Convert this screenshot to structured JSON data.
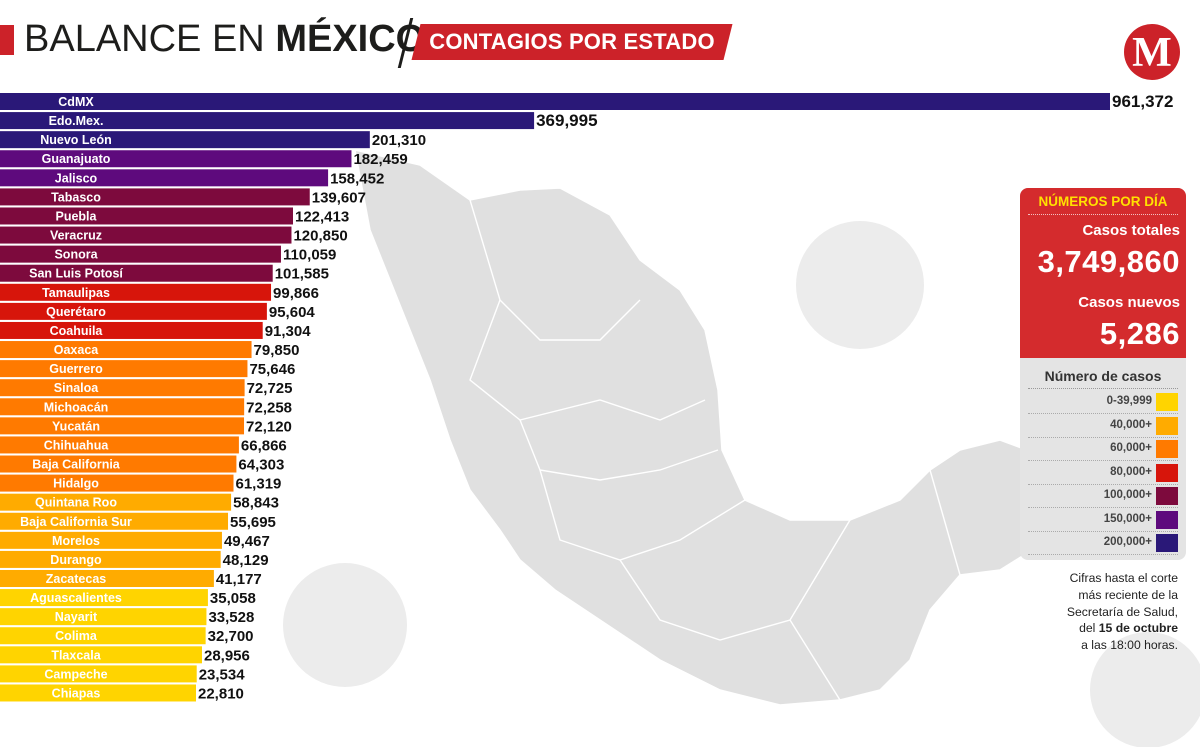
{
  "header": {
    "title_prefix": "BALANCE EN ",
    "title_bold": "MÉXICO",
    "subtitle": "CONTAGIOS POR ESTADO",
    "logo": "M",
    "accent": "#cc2229"
  },
  "panel": {
    "title": "NÚMEROS POR DÍA",
    "total_label": "Casos totales",
    "total_value": "3,749,860",
    "new_label": "Casos nuevos",
    "new_value": "5,286"
  },
  "legend": {
    "title": "Número de casos",
    "items": [
      {
        "label": "0-39,999",
        "color": "#ffd400"
      },
      {
        "label": "40,000+",
        "color": "#ffab00"
      },
      {
        "label": "60,000+",
        "color": "#ff7a00"
      },
      {
        "label": "80,000+",
        "color": "#d7150b"
      },
      {
        "label": "100,000+",
        "color": "#7d0a3d"
      },
      {
        "label": "150,000+",
        "color": "#5e0a7d"
      },
      {
        "label": "200,000+",
        "color": "#2a1878"
      }
    ]
  },
  "note": {
    "line1": "Cifras hasta el corte",
    "line2": "más reciente de la",
    "line3": "Secretaría de Salud,",
    "line4_pre": "del ",
    "line4_bold": "15 de octubre",
    "line5": "a las 18:00 horas."
  },
  "chart_data": {
    "type": "bar",
    "orientation": "horizontal",
    "categories": [
      "CdMX",
      "Edo.Mex.",
      "Nuevo León",
      "Guanajuato",
      "Jalisco",
      "Tabasco",
      "Puebla",
      "Veracruz",
      "Sonora",
      "San Luis Potosí",
      "Tamaulipas",
      "Querétaro",
      "Coahuila",
      "Oaxaca",
      "Guerrero",
      "Sinaloa",
      "Michoacán",
      "Yucatán",
      "Chihuahua",
      "Baja California",
      "Hidalgo",
      "Quintana Roo",
      "Baja California Sur",
      "Morelos",
      "Durango",
      "Zacatecas",
      "Aguascalientes",
      "Nayarit",
      "Colima",
      "Tlaxcala",
      "Campeche",
      "Chiapas"
    ],
    "values": [
      961372,
      369995,
      201310,
      182459,
      158452,
      139607,
      122413,
      120850,
      110059,
      101585,
      99866,
      95604,
      91304,
      79850,
      75646,
      72725,
      72258,
      72120,
      66866,
      64303,
      61319,
      58843,
      55695,
      49467,
      48129,
      41177,
      35058,
      33528,
      32700,
      28956,
      23534,
      22810
    ],
    "value_labels": [
      "961,372",
      "369,995",
      "201,310",
      "182,459",
      "158,452",
      "139,607",
      "122,413",
      "120,850",
      "110,059",
      "101,585",
      "99,866",
      "95,604",
      "91,304",
      "79,850",
      "75,646",
      "72,725",
      "72,258",
      "72,120",
      "66,866",
      "64,303",
      "61,319",
      "58,843",
      "55,695",
      "49,467",
      "48,129",
      "41,177",
      "35,058",
      "33,528",
      "32,700",
      "28,956",
      "23,534",
      "22,810"
    ],
    "colors": [
      "#2a1878",
      "#2a1878",
      "#2a1878",
      "#5e0a7d",
      "#5e0a7d",
      "#7d0a3d",
      "#7d0a3d",
      "#7d0a3d",
      "#7d0a3d",
      "#7d0a3d",
      "#d7150b",
      "#d7150b",
      "#d7150b",
      "#ff7a00",
      "#ff7a00",
      "#ff7a00",
      "#ff7a00",
      "#ff7a00",
      "#ff7a00",
      "#ff7a00",
      "#ff7a00",
      "#ffab00",
      "#ffab00",
      "#ffab00",
      "#ffab00",
      "#ffab00",
      "#ffd400",
      "#ffd400",
      "#ffd400",
      "#ffd400",
      "#ffd400",
      "#ffd400"
    ],
    "legend_placement": "right",
    "grid": false
  }
}
